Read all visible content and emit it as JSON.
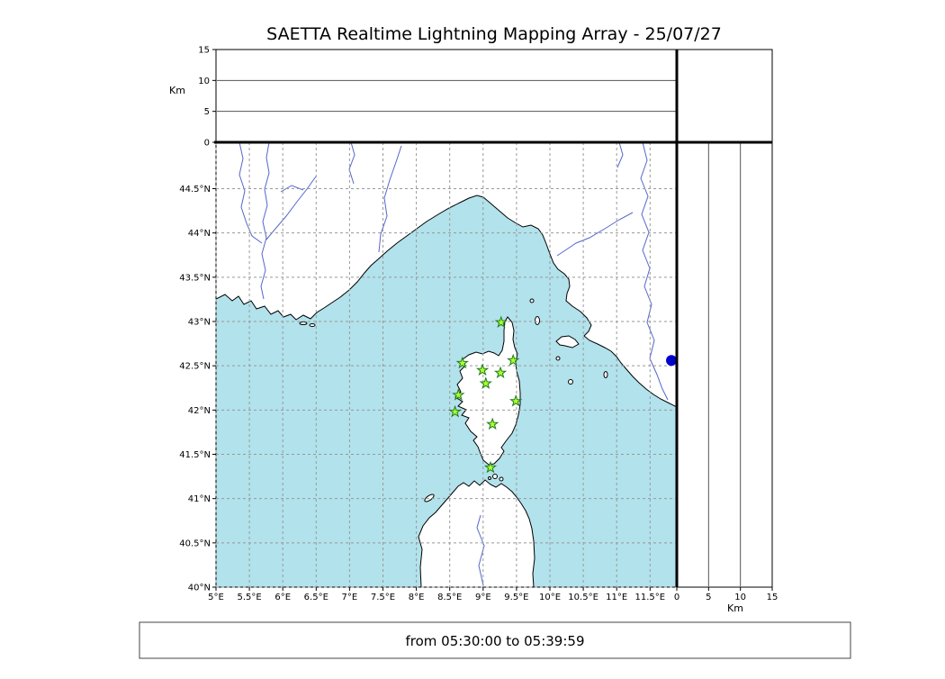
{
  "title": "SAETTA Realtime Lightning Mapping Array - 25/07/27",
  "footer": {
    "text": "from 05:30:00 to 05:39:59"
  },
  "altitude_axis": {
    "label": "Km",
    "ticks": [
      0,
      5,
      10,
      15
    ],
    "max_km": 15,
    "ref_lines_km": [
      5,
      10
    ]
  },
  "map": {
    "lat_ticks": [
      {
        "value": 40,
        "label": "40°N"
      },
      {
        "value": 40.5,
        "label": "40.5°N"
      },
      {
        "value": 41,
        "label": "41°N"
      },
      {
        "value": 41.5,
        "label": "41.5°N"
      },
      {
        "value": 42,
        "label": "42°N"
      },
      {
        "value": 42.5,
        "label": "42.5°N"
      },
      {
        "value": 43,
        "label": "43°N"
      },
      {
        "value": 43.5,
        "label": "43.5°N"
      },
      {
        "value": 44,
        "label": "44°N"
      },
      {
        "value": 44.5,
        "label": "44.5°N"
      }
    ],
    "lon_ticks": [
      {
        "value": 5,
        "label": "5°E"
      },
      {
        "value": 5.5,
        "label": "5.5°E"
      },
      {
        "value": 6,
        "label": "6°E"
      },
      {
        "value": 6.5,
        "label": "6.5°E"
      },
      {
        "value": 7,
        "label": "7°E"
      },
      {
        "value": 7.5,
        "label": "7.5°E"
      },
      {
        "value": 8,
        "label": "8°E"
      },
      {
        "value": 8.5,
        "label": "8.5°E"
      },
      {
        "value": 9,
        "label": "9°E"
      },
      {
        "value": 9.5,
        "label": "9.5°E"
      },
      {
        "value": 10,
        "label": "10°E"
      },
      {
        "value": 10.5,
        "label": "10.5°E"
      },
      {
        "value": 11,
        "label": "11°E"
      },
      {
        "value": 11.5,
        "label": "11.5°E"
      }
    ],
    "lat_range": [
      40,
      45.02
    ],
    "lon_range": [
      5,
      11.9
    ],
    "grid_step_deg": 0.5
  },
  "stations": {
    "marker": "star",
    "points": [
      {
        "lon": 9.27,
        "lat": 42.99
      },
      {
        "lon": 8.69,
        "lat": 42.53
      },
      {
        "lon": 8.99,
        "lat": 42.45
      },
      {
        "lon": 9.26,
        "lat": 42.42
      },
      {
        "lon": 9.45,
        "lat": 42.56
      },
      {
        "lon": 9.04,
        "lat": 42.3
      },
      {
        "lon": 8.63,
        "lat": 42.17
      },
      {
        "lon": 9.49,
        "lat": 42.1
      },
      {
        "lon": 8.58,
        "lat": 41.98
      },
      {
        "lon": 9.14,
        "lat": 41.84
      },
      {
        "lon": 9.11,
        "lat": 41.35
      }
    ]
  },
  "event_dot": {
    "lon": 11.82,
    "lat": 42.56
  },
  "colors": {
    "sea": "#b2e2ec",
    "land": "#ffffff",
    "coast": "#000000",
    "river": "#5566cc",
    "grid": "#999999",
    "station_fill": "#adff2f",
    "station_edge": "#1e7a1e",
    "event_dot": "#0000cc",
    "frame": "#000000"
  }
}
